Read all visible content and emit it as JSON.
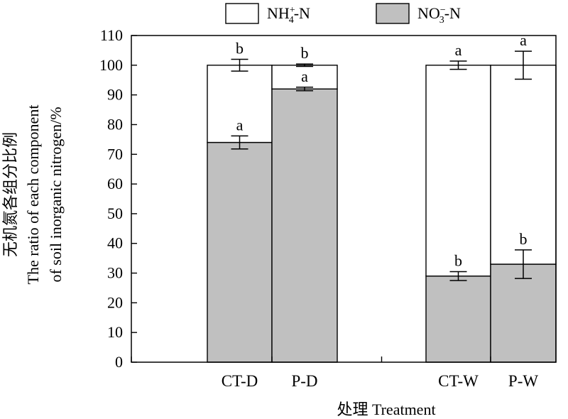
{
  "chart_data": {
    "type": "bar",
    "stacked": true,
    "categories": [
      "CT-D",
      "P-D",
      "CT-W",
      "P-W"
    ],
    "series": [
      {
        "name": "NO3--N",
        "legend_base": "NO",
        "legend_sub": "3",
        "legend_sup": "−",
        "legend_tail": "-N",
        "color": "#c0c0c0",
        "values": [
          74,
          92,
          29,
          33
        ],
        "errors": [
          2.2,
          0.6,
          1.5,
          4.8
        ],
        "sig": [
          "a",
          "a",
          "b",
          "b"
        ]
      },
      {
        "name": "NH4+-N",
        "legend_base": "NH",
        "legend_sub": "4",
        "legend_sup": "+",
        "legend_tail": "-N",
        "color": "#ffffff",
        "values": [
          26,
          8,
          71,
          67
        ],
        "errors": [
          2.0,
          0.4,
          1.4,
          4.7
        ],
        "sig": [
          "b",
          "b",
          "a",
          "a"
        ]
      }
    ],
    "ylim": [
      0,
      110
    ],
    "yticks": [
      0,
      10,
      20,
      30,
      40,
      50,
      60,
      70,
      80,
      90,
      100,
      110
    ],
    "ylabel_lines": [
      "无机氮各组分比例",
      "The ratio of each component",
      "of soil inorganic nitrogen/%"
    ],
    "xlabel": "处理 Treatment",
    "legend_position": "top",
    "grid": false
  }
}
